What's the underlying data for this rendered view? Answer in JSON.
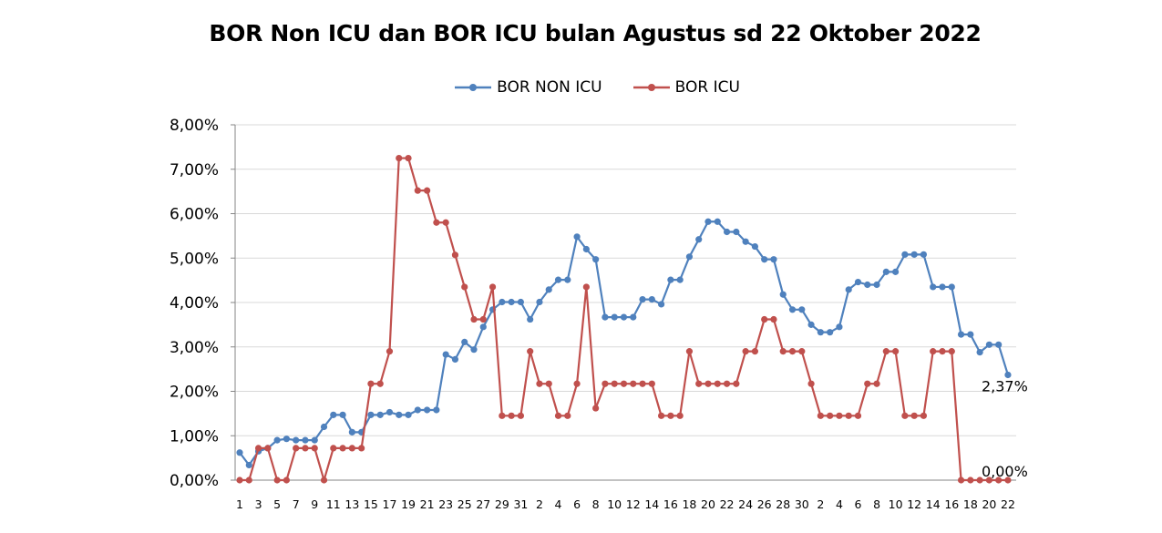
{
  "chart_data": {
    "type": "line",
    "title": "BOR Non ICU dan BOR ICU bulan Agustus sd 22 Oktober 2022",
    "xlabel": "",
    "ylabel": "",
    "ylim": [
      0,
      8
    ],
    "y_ticks": [
      "0,00%",
      "1,00%",
      "2,00%",
      "3,00%",
      "4,00%",
      "5,00%",
      "6,00%",
      "7,00%",
      "8,00%"
    ],
    "grid": true,
    "legend_position": "top-center",
    "x_tick_labels": [
      "1",
      "3",
      "5",
      "7",
      "9",
      "11",
      "13",
      "15",
      "17",
      "19",
      "21",
      "23",
      "25",
      "27",
      "29",
      "31",
      "2",
      "4",
      "6",
      "8",
      "10",
      "12",
      "14",
      "16",
      "18",
      "20",
      "22",
      "24",
      "26",
      "28",
      "30",
      "2",
      "4",
      "6",
      "8",
      "10",
      "12",
      "14",
      "16",
      "18",
      "20",
      "22"
    ],
    "series": [
      {
        "name": "BOR NON ICU",
        "color": "#4F81BD",
        "end_label": "2,37%",
        "values": [
          0.62,
          0.34,
          0.65,
          0.72,
          0.9,
          0.93,
          0.9,
          0.9,
          0.9,
          1.2,
          1.47,
          1.47,
          1.08,
          1.08,
          1.47,
          1.47,
          1.53,
          1.47,
          1.47,
          1.58,
          1.58,
          1.58,
          2.83,
          2.72,
          3.11,
          2.94,
          3.45,
          3.84,
          4.01,
          4.01,
          4.01,
          3.62,
          4.01,
          4.29,
          4.51,
          4.51,
          5.48,
          5.2,
          4.97,
          3.67,
          3.67,
          3.67,
          3.67,
          4.07,
          4.07,
          3.96,
          4.51,
          4.51,
          5.03,
          5.42,
          5.82,
          5.82,
          5.59,
          5.59,
          5.37,
          5.26,
          4.97,
          4.97,
          4.18,
          3.84,
          3.84,
          3.5,
          3.33,
          3.33,
          3.45,
          4.29,
          4.46,
          4.4,
          4.4,
          4.69,
          4.69,
          5.08,
          5.08,
          5.08,
          4.35,
          4.35,
          4.35,
          3.28,
          3.28,
          2.88,
          3.05,
          3.05,
          2.37
        ]
      },
      {
        "name": "BOR ICU",
        "color": "#C0504D",
        "end_label": "0,00%",
        "values": [
          0,
          0,
          0.72,
          0.72,
          0,
          0,
          0.72,
          0.72,
          0.72,
          0,
          0.72,
          0.72,
          0.72,
          0.72,
          2.17,
          2.17,
          2.9,
          7.25,
          7.25,
          6.52,
          6.52,
          5.8,
          5.8,
          5.07,
          4.35,
          3.62,
          3.62,
          4.35,
          1.45,
          1.45,
          1.45,
          2.9,
          2.17,
          2.17,
          1.45,
          1.45,
          2.17,
          4.35,
          1.62,
          2.17,
          2.17,
          2.17,
          2.17,
          2.17,
          2.17,
          1.45,
          1.45,
          1.45,
          2.9,
          2.17,
          2.17,
          2.17,
          2.17,
          2.17,
          2.9,
          2.9,
          3.62,
          3.62,
          2.9,
          2.9,
          2.9,
          2.17,
          1.45,
          1.45,
          1.45,
          1.45,
          1.45,
          2.17,
          2.17,
          2.9,
          2.9,
          1.45,
          1.45,
          1.45,
          2.9,
          2.9,
          2.9,
          0,
          0,
          0,
          0,
          0,
          0
        ]
      }
    ]
  }
}
